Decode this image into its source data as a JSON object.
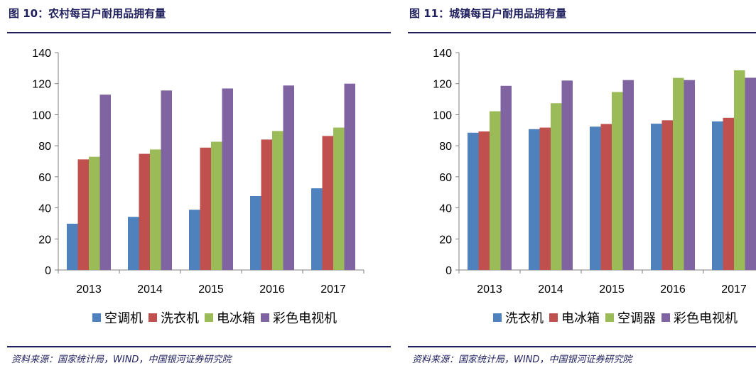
{
  "colors": {
    "blue": "#4f81bd",
    "red": "#c0504d",
    "green": "#9bbb59",
    "purple": "#8064a2",
    "accent": "#1f1f5e"
  },
  "left": {
    "title": "图 10：农村每百户耐用品拥有量",
    "source": "资料来源：国家统计局，WIND，中国银河证券研究院"
  },
  "right": {
    "title": "图 11：城镇每百户耐用品拥有量",
    "source": "资料来源：国家统计局，WIND，中国银河证券研究院"
  },
  "chart_data": [
    {
      "type": "bar",
      "categories": [
        "2013",
        "2014",
        "2015",
        "2016",
        "2017"
      ],
      "series": [
        {
          "name": "空调机",
          "color": "#4f81bd",
          "values": [
            29.8,
            34.2,
            38.8,
            47.6,
            52.6
          ]
        },
        {
          "name": "洗衣机",
          "color": "#c0504d",
          "values": [
            71.2,
            74.8,
            78.8,
            84.0,
            86.3
          ]
        },
        {
          "name": "电冰箱",
          "color": "#9bbb59",
          "values": [
            72.9,
            77.6,
            82.6,
            89.5,
            91.7
          ]
        },
        {
          "name": "彩色电视机",
          "color": "#8064a2",
          "values": [
            112.9,
            115.6,
            116.9,
            118.8,
            120.0
          ]
        }
      ],
      "ylim": [
        0,
        140
      ],
      "yticks": [
        0,
        20,
        40,
        60,
        80,
        100,
        120,
        140
      ],
      "grid": false,
      "legend": "bottom"
    },
    {
      "type": "bar",
      "categories": [
        "2013",
        "2014",
        "2015",
        "2016",
        "2017"
      ],
      "series": [
        {
          "name": "洗衣机",
          "color": "#4f81bd",
          "values": [
            88.4,
            90.7,
            92.3,
            94.2,
            95.7
          ]
        },
        {
          "name": "电冰箱",
          "color": "#c0504d",
          "values": [
            89.2,
            91.7,
            94.0,
            96.4,
            98.0
          ]
        },
        {
          "name": "空调器",
          "color": "#9bbb59",
          "values": [
            102.2,
            107.4,
            114.6,
            123.7,
            128.6
          ]
        },
        {
          "name": "彩色电视机",
          "color": "#8064a2",
          "values": [
            118.6,
            122.0,
            122.3,
            122.3,
            123.8
          ]
        }
      ],
      "ylim": [
        0,
        140
      ],
      "yticks": [
        0,
        20,
        40,
        60,
        80,
        100,
        120,
        140
      ],
      "grid": false,
      "legend": "bottom"
    }
  ]
}
